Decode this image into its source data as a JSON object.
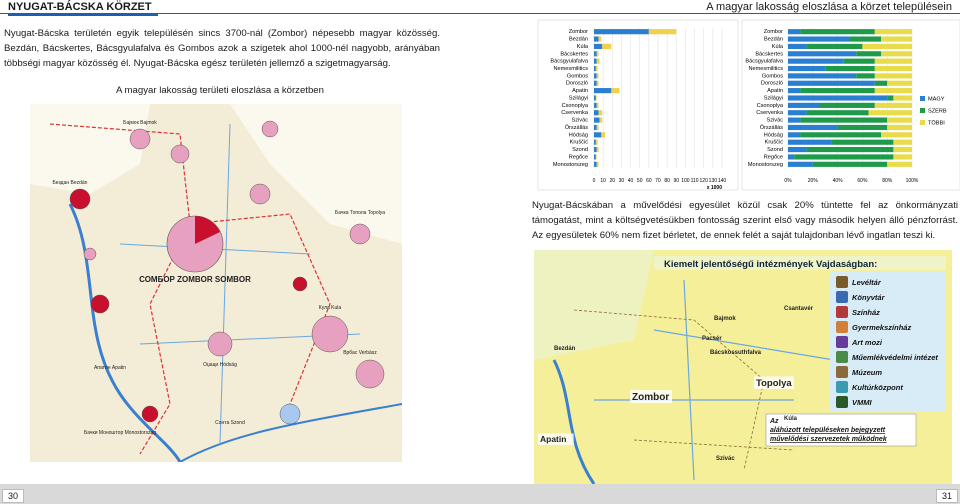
{
  "left_page": {
    "header": "NYUGAT-BÁCSKA KÖRZET",
    "paragraph": "Nyugat-Bácska területén egyik településén sincs 3700-nál (Zombor) népesebb magyar közösség. Bezdán, Bácskertes, Bácsgyulafalva és Gombos azok a szigetek ahol 1000-nél nagyobb, arányában többségi magyar közösség él. Nyugat-Bácska egész területén jellemző a szigetmagyarság.",
    "map_caption": "A magyar lakosság területi eloszlása a körzetben",
    "map_labels": [
      "СОМБОР ZOMBOR SOMBOR",
      "Бајмок Bajmok",
      "Бездан Bezdán",
      "Апатин Apatin",
      "Кула Kula",
      "Оџаци Hódság",
      "Бачки Моноштор Monostorszeg",
      "Сонта Szond",
      "Врбас Verbász",
      "Бачка Топола Topolya"
    ],
    "page_number": "30"
  },
  "right_page": {
    "header": "A magyar lakosság eloszlása a körzet településein",
    "charts": [
      {
        "type": "bar",
        "categories": [
          "Zombor",
          "Bezdán",
          "Kúla",
          "Bácskertes",
          "Bácsgyulafalva",
          "Nemesmilitics",
          "Gombos",
          "Doroszló",
          "Apatin",
          "Szilágyi",
          "Csonoplya",
          "Cservenka",
          "Szivác",
          "Őrszállás",
          "Hódság",
          "Kruščić",
          "Szond",
          "Regőce",
          "Monostorszeg"
        ],
        "series": [
          {
            "color": "#2a7fd0",
            "values": [
              60,
              5,
              9,
              3,
              3,
              2,
              3,
              3,
              19,
              2,
              3,
              5,
              6,
              3,
              8,
              2,
              3,
              2,
              3
            ]
          },
          {
            "color": "#f2d04a",
            "values": [
              30,
              3,
              10,
              2,
              3,
              2,
              2,
              2,
              9,
              1,
              2,
              4,
              3,
              2,
              4,
              2,
              2,
              1,
              2
            ]
          }
        ],
        "xlim": [
          0,
          140
        ],
        "xticks": [
          0,
          10,
          20,
          30,
          40,
          50,
          60,
          70,
          80,
          90,
          100,
          110,
          120,
          130,
          140
        ],
        "x_unit": "x 1000"
      },
      {
        "type": "stacked_percent_bar",
        "categories": [
          "Zombor",
          "Bezdán",
          "Kúla",
          "Bácskertes",
          "Bácsgyulafalva",
          "Nemesmilitics",
          "Gombos",
          "Doroszló",
          "Apatin",
          "Szilágyi",
          "Csonoplya",
          "Cservenka",
          "Szivác",
          "Őrszállás",
          "Hódság",
          "Kruščić",
          "Szond",
          "Regőce",
          "Monostorszeg"
        ],
        "series": [
          {
            "name": "MAGY",
            "color": "#2a7fd0",
            "values": [
              10,
              50,
              15,
              55,
              45,
              30,
              55,
              70,
              10,
              80,
              25,
              15,
              10,
              40,
              10,
              35,
              15,
              5,
              20
            ]
          },
          {
            "name": "SZERB",
            "color": "#1e9a4a",
            "values": [
              60,
              25,
              45,
              20,
              25,
              40,
              15,
              10,
              60,
              5,
              45,
              50,
              70,
              40,
              65,
              50,
              70,
              80,
              60
            ]
          },
          {
            "name": "TÖBBI",
            "color": "#e8dc4a",
            "values": [
              30,
              25,
              40,
              25,
              30,
              30,
              30,
              20,
              30,
              15,
              30,
              35,
              20,
              20,
              25,
              15,
              15,
              15,
              20
            ]
          }
        ],
        "xlim": [
          0,
          100
        ],
        "xticks": [
          {
            "value": 0,
            "label": "0%"
          },
          {
            "value": 20,
            "label": "20%"
          },
          {
            "value": 40,
            "label": "40%"
          },
          {
            "value": 60,
            "label": "60%"
          },
          {
            "value": 80,
            "label": "80%"
          },
          {
            "value": 100,
            "label": "100%"
          }
        ]
      }
    ],
    "paragraph": "Nyugat-Bácskában a művelődési egyesület közül csak 20% tüntette fel az önkormányzati támogatást, mint a költségvetésükben fontosság szerint első vagy második helyen álló pénzforrást. Az egyesületek 60% nem fizet bérletet, de ennek felét a saját tulajdonban lévő ingatlan teszi ki.",
    "map": {
      "title": "Kiemelt jelentőségű intézmények Vajdaságban:",
      "legend": [
        "Levéltár",
        "Könyvtár",
        "Színház",
        "Gyermekszínház",
        "Art mozi",
        "Műemlékvédelmi intézet",
        "Múzeum",
        "Kultúrközpont",
        "VMMI"
      ],
      "note": [
        "Az",
        "aláhúzott településeken bejegyzett",
        "művelődési szervezetek működnek"
      ],
      "labels": [
        "Zombor",
        "Topolya",
        "Apatin",
        "Bajmok",
        "Pacsér",
        "Bácskossuthfalva",
        "Szivác",
        "Kúla",
        "Csantavér",
        "Bezdán"
      ]
    },
    "page_number": "31"
  }
}
